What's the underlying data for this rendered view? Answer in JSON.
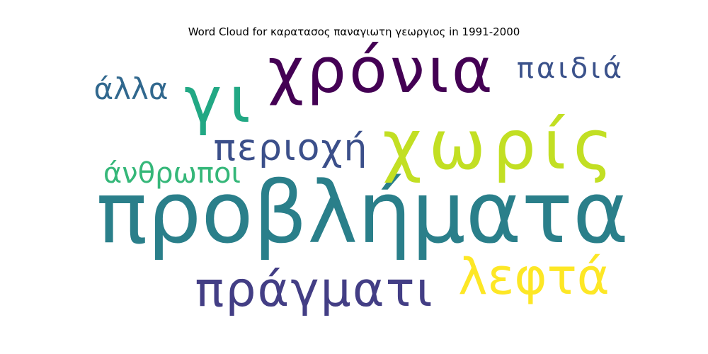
{
  "figure": {
    "title": "Word Cloud for καρατασος παναγιωτη γεωργιος in 1991-2000"
  },
  "chart_data": {
    "type": "wordcloud",
    "title": "Word Cloud for καρατασος παναγιωτη γεωργιος in 1991-2000",
    "colormap": "viridis",
    "background": "#ffffff",
    "words": [
      {
        "text": "προβλήματα",
        "weight": 1.0,
        "color": "#2a7f8a"
      },
      {
        "text": "χωρίς",
        "weight": 0.76,
        "color": "#c2df23"
      },
      {
        "text": "χρόνια",
        "weight": 0.7,
        "color": "#440154"
      },
      {
        "text": "γι",
        "weight": 0.68,
        "color": "#22a884"
      },
      {
        "text": "λεφτά",
        "weight": 0.56,
        "color": "#fde725"
      },
      {
        "text": "πράγματι",
        "weight": 0.56,
        "color": "#433e85"
      },
      {
        "text": "περιοχή",
        "weight": 0.41,
        "color": "#3b4f8a"
      },
      {
        "text": "άνθρωποι",
        "weight": 0.35,
        "color": "#35b779"
      },
      {
        "text": "άλλα",
        "weight": 0.35,
        "color": "#31688e"
      },
      {
        "text": "παιδιά",
        "weight": 0.35,
        "color": "#3b528b"
      }
    ]
  }
}
